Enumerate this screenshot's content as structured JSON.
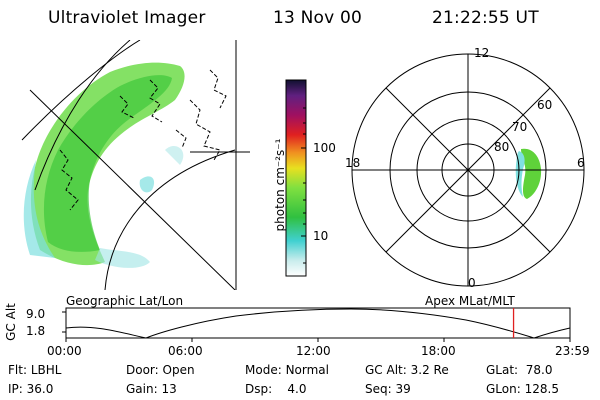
{
  "header": {
    "instrument": "Ultraviolet Imager",
    "date": "13 Nov 00",
    "time": "21:22:55 UT"
  },
  "colorbar": {
    "unit_label": "photon cm⁻²s⁻¹",
    "tick_labels": [
      "100",
      "10"
    ]
  },
  "polar_plot": {
    "mlt_labels": [
      "12",
      "18",
      "6",
      "0"
    ],
    "mlat_labels": [
      "60",
      "70",
      "80"
    ]
  },
  "timeline": {
    "axis_label": "GC Alt",
    "left_title": "Geographic Lat/Lon",
    "right_title": "Apex MLat/MLT",
    "y_ticks": [
      "9.0",
      "1.8"
    ],
    "x_ticks": [
      "00:00",
      "06:00",
      "12:00",
      "18:00",
      "23:59"
    ],
    "current_time_fraction": 0.888
  },
  "info": {
    "flt_label": "Flt:",
    "flt_value": "LBHL",
    "ip_label": "IP:",
    "ip_value": "36.0",
    "door_label": "Door:",
    "door_value": "Open",
    "gain_label": "Gain:",
    "gain_value": "13",
    "mode_label": "Mode:",
    "mode_value": "Normal",
    "dsp_label": "Dsp:",
    "dsp_value": "4.0",
    "gcalt_label": "GC Alt:",
    "gcalt_value": "3.2 Re",
    "seq_label": "Seq:",
    "seq_value": "39",
    "glat_label": "GLat:",
    "glat_value": "78.0",
    "glon_label": "GLon:",
    "glon_value": "128.5"
  },
  "colors": {
    "background": "#ffffff",
    "lines": "#000000",
    "current_time_marker": "#e02020",
    "aurora_green": "#5fd23a",
    "aurora_cyan": "#4fd0d0"
  }
}
